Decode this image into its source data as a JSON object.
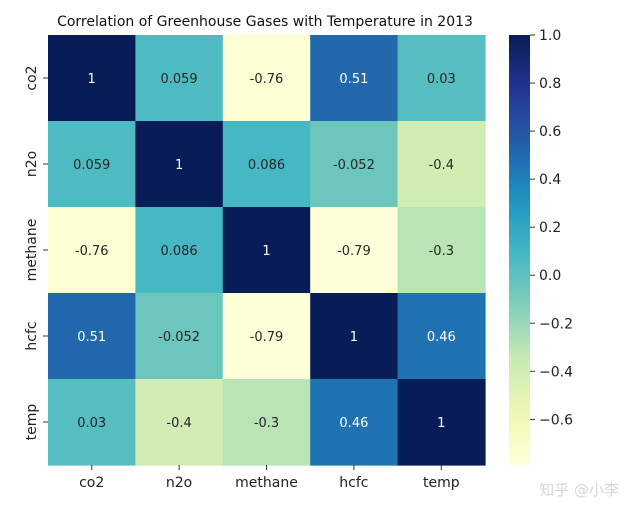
{
  "chart_data": {
    "type": "heatmap",
    "title": "Correlation of Greenhouse Gases with Temperature in 2013",
    "xlabel": "",
    "ylabel": "",
    "x_categories": [
      "co2",
      "n2o",
      "methane",
      "hcfc",
      "temp"
    ],
    "y_categories": [
      "co2",
      "n2o",
      "methane",
      "hcfc",
      "temp"
    ],
    "matrix": [
      [
        1,
        0.059,
        -0.76,
        0.51,
        0.03
      ],
      [
        0.059,
        1,
        0.086,
        -0.052,
        -0.4
      ],
      [
        -0.76,
        0.086,
        1,
        -0.79,
        -0.3
      ],
      [
        0.51,
        -0.052,
        -0.79,
        1,
        0.46
      ],
      [
        0.03,
        -0.4,
        -0.3,
        0.46,
        1
      ]
    ],
    "annotations": [
      [
        "1",
        "0.059",
        "-0.76",
        "0.51",
        "0.03"
      ],
      [
        "0.059",
        "1",
        "0.086",
        "-0.052",
        "-0.4"
      ],
      [
        "-0.76",
        "0.086",
        "1",
        "-0.79",
        "-0.3"
      ],
      [
        "0.51",
        "-0.052",
        "-0.79",
        "1",
        "0.46"
      ],
      [
        "0.03",
        "-0.4",
        "-0.3",
        "0.46",
        "1"
      ]
    ],
    "colormap": "YlGnBu",
    "color_range": [
      -0.79,
      1.0
    ],
    "colorbar_ticks": [
      1.0,
      0.8,
      0.6,
      0.4,
      0.2,
      0.0,
      -0.2,
      -0.4,
      -0.6
    ],
    "colorbar_tick_labels": [
      "1.0",
      "0.8",
      "0.6",
      "0.4",
      "0.2",
      "0.0",
      "−0.2",
      "−0.4",
      "−0.6"
    ]
  },
  "watermark": "知乎 @小李"
}
